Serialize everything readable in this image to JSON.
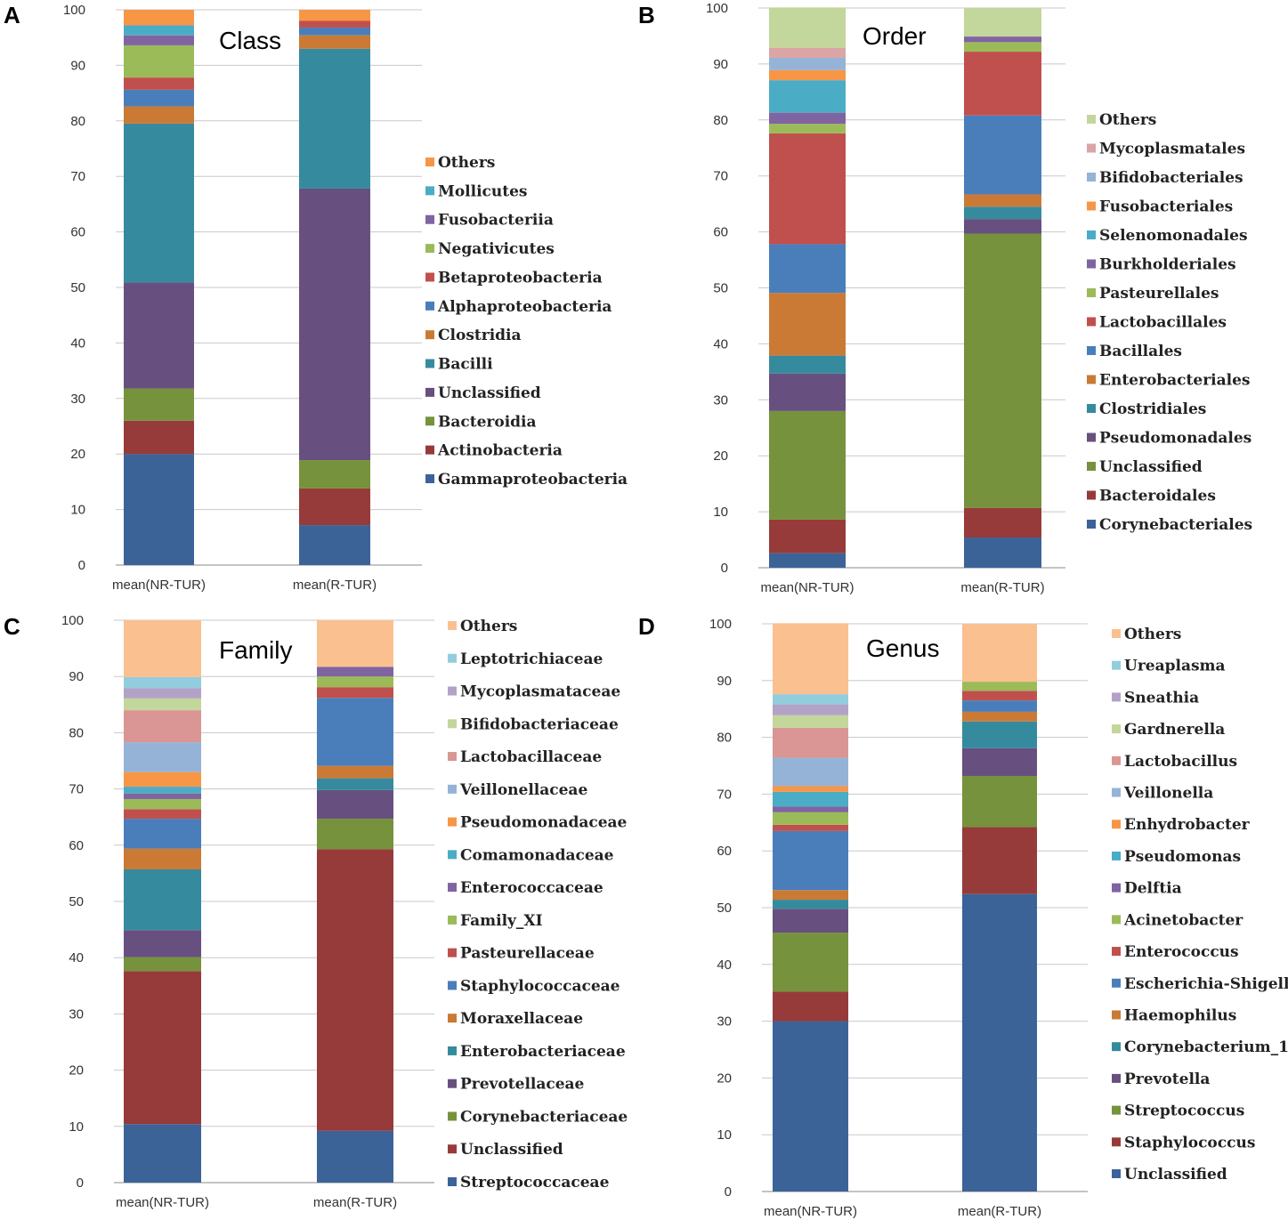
{
  "chart_data": [
    {
      "panel": "A",
      "title": "Class",
      "type": "bar",
      "stacked": true,
      "categories": [
        "mean(NR-TUR)",
        "mean(R-TUR)"
      ],
      "ylim": [
        0,
        100
      ],
      "yticks": [
        0,
        10,
        20,
        30,
        40,
        50,
        60,
        70,
        80,
        90,
        100
      ],
      "legend_position": "right",
      "series": [
        {
          "name": "Gammaproteobacteria",
          "color": "#3b6398",
          "values": [
            20.0,
            7.2
          ]
        },
        {
          "name": "Actinobacteria",
          "color": "#963b3a",
          "values": [
            6.0,
            6.6
          ]
        },
        {
          "name": "Bacteroidia",
          "color": "#76923c",
          "values": [
            5.8,
            5.1
          ]
        },
        {
          "name": "Unclassified",
          "color": "#67507f",
          "values": [
            19.1,
            48.9
          ]
        },
        {
          "name": "Bacilli",
          "color": "#368a9e",
          "values": [
            28.6,
            25.2
          ]
        },
        {
          "name": "Clostridia",
          "color": "#cb7a35",
          "values": [
            3.1,
            2.4
          ]
        },
        {
          "name": "Alphaproteobacteria",
          "color": "#4a7ebb",
          "values": [
            3.0,
            1.4
          ]
        },
        {
          "name": "Betaproteobacteria",
          "color": "#c0504d",
          "values": [
            2.2,
            1.2
          ]
        },
        {
          "name": "Negativicutes",
          "color": "#9bbb59",
          "values": [
            5.8,
            0.0
          ]
        },
        {
          "name": "Fusobacteriia",
          "color": "#8064a2",
          "values": [
            1.8,
            0.0
          ]
        },
        {
          "name": "Mollicutes",
          "color": "#4bacc6",
          "values": [
            1.8,
            0.0
          ]
        },
        {
          "name": "Others",
          "color": "#f79646",
          "values": [
            2.8,
            2.0
          ]
        }
      ]
    },
    {
      "panel": "B",
      "title": "Order",
      "type": "bar",
      "stacked": true,
      "categories": [
        "mean(NR-TUR)",
        "mean(R-TUR)"
      ],
      "ylim": [
        0,
        100
      ],
      "yticks": [
        0,
        10,
        20,
        30,
        40,
        50,
        60,
        70,
        80,
        90,
        100
      ],
      "legend_position": "right",
      "series": [
        {
          "name": "Corynebacteriales",
          "color": "#3b6398",
          "values": [
            2.6,
            5.4
          ]
        },
        {
          "name": "Bacteroidales",
          "color": "#963b3a",
          "values": [
            6.0,
            5.3
          ]
        },
        {
          "name": "Unclassified",
          "color": "#76923c",
          "values": [
            19.4,
            49.0
          ]
        },
        {
          "name": "Pseudomonadales",
          "color": "#67507f",
          "values": [
            6.7,
            2.6
          ]
        },
        {
          "name": "Clostridiales",
          "color": "#368a9e",
          "values": [
            3.2,
            2.2
          ]
        },
        {
          "name": "Enterobacteriales",
          "color": "#cb7a35",
          "values": [
            11.2,
            2.2
          ]
        },
        {
          "name": "Bacillales",
          "color": "#4a7ebb",
          "values": [
            8.7,
            14.1
          ]
        },
        {
          "name": "Lactobacillales",
          "color": "#c0504d",
          "values": [
            19.8,
            11.4
          ]
        },
        {
          "name": "Pasteurellales",
          "color": "#9bbb59",
          "values": [
            1.7,
            1.7
          ]
        },
        {
          "name": "Burkholderiales",
          "color": "#8064a2",
          "values": [
            2.0,
            1.0
          ]
        },
        {
          "name": "Selenomonadales",
          "color": "#4bacc6",
          "values": [
            5.8,
            0.0
          ]
        },
        {
          "name": "Fusobacteriales",
          "color": "#f79646",
          "values": [
            1.8,
            0.0
          ]
        },
        {
          "name": "Bifidobacteriales",
          "color": "#95b3d7",
          "values": [
            2.2,
            0.0
          ]
        },
        {
          "name": "Mycoplasmatales",
          "color": "#dba5a6",
          "values": [
            1.8,
            0.0
          ]
        },
        {
          "name": "Others",
          "color": "#c3d69b",
          "values": [
            7.2,
            5.1
          ]
        }
      ]
    },
    {
      "panel": "C",
      "title": "Family",
      "type": "bar",
      "stacked": true,
      "categories": [
        "mean(NR-TUR)",
        "mean(R-TUR)"
      ],
      "ylim": [
        0,
        100
      ],
      "yticks": [
        0,
        10,
        20,
        30,
        40,
        50,
        60,
        70,
        80,
        90,
        100
      ],
      "legend_position": "right",
      "series": [
        {
          "name": "Streptococcaceae",
          "color": "#3b6398",
          "values": [
            10.4,
            9.2
          ]
        },
        {
          "name": "Unclassified",
          "color": "#963b3a",
          "values": [
            27.2,
            50.1
          ]
        },
        {
          "name": "Corynebacteriaceae",
          "color": "#76923c",
          "values": [
            2.5,
            5.4
          ]
        },
        {
          "name": "Prevotellaceae",
          "color": "#67507f",
          "values": [
            4.8,
            5.1
          ]
        },
        {
          "name": "Enterobacteriaceae",
          "color": "#368a9e",
          "values": [
            10.8,
            2.1
          ]
        },
        {
          "name": "Moraxellaceae",
          "color": "#cb7a35",
          "values": [
            3.7,
            2.2
          ]
        },
        {
          "name": "Staphylococcaceae",
          "color": "#4a7ebb",
          "values": [
            5.3,
            12.1
          ]
        },
        {
          "name": "Pasteurellaceae",
          "color": "#c0504d",
          "values": [
            1.7,
            1.9
          ]
        },
        {
          "name": "Family_XI",
          "color": "#9bbb59",
          "values": [
            1.8,
            1.9
          ]
        },
        {
          "name": "Enterococcaceae",
          "color": "#8064a2",
          "values": [
            1.0,
            1.7
          ]
        },
        {
          "name": "Comamonadaceae",
          "color": "#4bacc6",
          "values": [
            1.2,
            0.0
          ]
        },
        {
          "name": "Pseudomonadaceae",
          "color": "#f79646",
          "values": [
            2.6,
            0.0
          ]
        },
        {
          "name": "Veillonellaceae",
          "color": "#95b3d7",
          "values": [
            5.3,
            0.0
          ]
        },
        {
          "name": "Lactobacillaceae",
          "color": "#d99694",
          "values": [
            5.7,
            0.0
          ]
        },
        {
          "name": "Bifidobacteriaceae",
          "color": "#c3d69b",
          "values": [
            2.1,
            0.0
          ]
        },
        {
          "name": "Mycoplasmataceae",
          "color": "#b3a2c7",
          "values": [
            1.8,
            0.0
          ]
        },
        {
          "name": "Leptotrichiaceae",
          "color": "#93cddd",
          "values": [
            2.0,
            0.0
          ]
        },
        {
          "name": "Others",
          "color": "#fac090",
          "values": [
            10.1,
            8.3
          ]
        }
      ]
    },
    {
      "panel": "D",
      "title": "Genus",
      "type": "bar",
      "stacked": true,
      "categories": [
        "mean(NR-TUR)",
        "mean(R-TUR)"
      ],
      "ylim": [
        0,
        100
      ],
      "yticks": [
        0,
        10,
        20,
        30,
        40,
        50,
        60,
        70,
        80,
        90,
        100
      ],
      "legend_position": "right",
      "series": [
        {
          "name": "Unclassified",
          "color": "#3b6398",
          "values": [
            30.0,
            52.4
          ]
        },
        {
          "name": "Staphylococcus",
          "color": "#963b3a",
          "values": [
            5.2,
            11.8
          ]
        },
        {
          "name": "Streptococcus",
          "color": "#76923c",
          "values": [
            10.4,
            9.0
          ]
        },
        {
          "name": "Prevotella",
          "color": "#67507f",
          "values": [
            4.2,
            4.9
          ]
        },
        {
          "name": "Corynebacterium_1",
          "color": "#368a9e",
          "values": [
            1.6,
            4.7
          ]
        },
        {
          "name": "Haemophilus",
          "color": "#cb7a35",
          "values": [
            1.7,
            1.7
          ]
        },
        {
          "name": "Escherichia-Shigella",
          "color": "#4a7ebb",
          "values": [
            10.4,
            2.0
          ]
        },
        {
          "name": "Enterococcus",
          "color": "#c0504d",
          "values": [
            1.1,
            1.7
          ]
        },
        {
          "name": "Acinetobacter",
          "color": "#9bbb59",
          "values": [
            2.2,
            1.6
          ]
        },
        {
          "name": "Delftia",
          "color": "#8064a2",
          "values": [
            1.0,
            0.0
          ]
        },
        {
          "name": "Pseudomonas",
          "color": "#4bacc6",
          "values": [
            2.6,
            0.0
          ]
        },
        {
          "name": "Enhydrobacter",
          "color": "#f79646",
          "values": [
            1.0,
            0.0
          ]
        },
        {
          "name": "Veillonella",
          "color": "#95b3d7",
          "values": [
            5.0,
            0.0
          ]
        },
        {
          "name": "Lactobacillus",
          "color": "#d99694",
          "values": [
            5.3,
            0.0
          ]
        },
        {
          "name": "Gardnerella",
          "color": "#c3d69b",
          "values": [
            2.2,
            0.0
          ]
        },
        {
          "name": "Sneathia",
          "color": "#b3a2c7",
          "values": [
            1.9,
            0.0
          ]
        },
        {
          "name": "Ureaplasma",
          "color": "#93cddd",
          "values": [
            1.8,
            0.0
          ]
        },
        {
          "name": "Others",
          "color": "#fac090",
          "values": [
            12.5,
            10.2
          ]
        }
      ]
    }
  ]
}
